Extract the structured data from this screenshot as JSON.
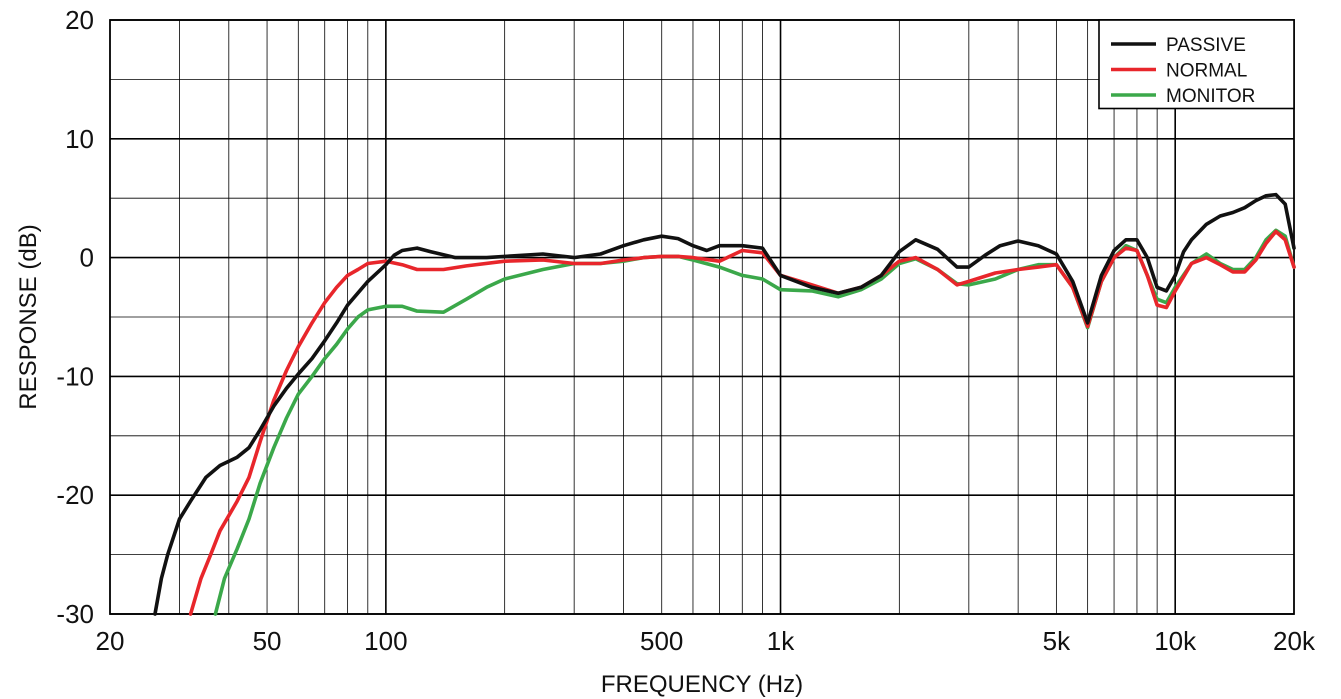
{
  "chart_data": {
    "type": "line",
    "xlabel": "FREQUENCY (Hz)",
    "ylabel": "RESPONSE (dB)",
    "x_scale": "log",
    "xlim": [
      20,
      20000
    ],
    "ylim": [
      -30,
      20
    ],
    "grid": true,
    "legend_position": "top-right",
    "x_ticks": [
      {
        "value": 20,
        "label": "20"
      },
      {
        "value": 50,
        "label": "50"
      },
      {
        "value": 100,
        "label": "100"
      },
      {
        "value": 500,
        "label": "500"
      },
      {
        "value": 1000,
        "label": "1k"
      },
      {
        "value": 5000,
        "label": "5k"
      },
      {
        "value": 10000,
        "label": "10k"
      },
      {
        "value": 20000,
        "label": "20k"
      }
    ],
    "y_ticks": [
      {
        "value": 20,
        "label": "20"
      },
      {
        "value": 10,
        "label": "10"
      },
      {
        "value": 0,
        "label": "0"
      },
      {
        "value": -10,
        "label": "-10"
      },
      {
        "value": -20,
        "label": "-20"
      },
      {
        "value": -30,
        "label": "-30"
      }
    ],
    "series": [
      {
        "name": "PASSIVE",
        "color": "#111111",
        "points": [
          [
            26,
            -30
          ],
          [
            27,
            -27
          ],
          [
            28,
            -25
          ],
          [
            30,
            -22
          ],
          [
            32,
            -20.5
          ],
          [
            35,
            -18.5
          ],
          [
            38,
            -17.5
          ],
          [
            42,
            -16.8
          ],
          [
            45,
            -16
          ],
          [
            48,
            -14.5
          ],
          [
            52,
            -12.5
          ],
          [
            56,
            -11
          ],
          [
            60,
            -9.8
          ],
          [
            65,
            -8.5
          ],
          [
            70,
            -7
          ],
          [
            75,
            -5.5
          ],
          [
            80,
            -4
          ],
          [
            90,
            -2
          ],
          [
            100,
            -0.6
          ],
          [
            105,
            0.2
          ],
          [
            110,
            0.6
          ],
          [
            120,
            0.8
          ],
          [
            130,
            0.5
          ],
          [
            150,
            0
          ],
          [
            180,
            0
          ],
          [
            200,
            0.1
          ],
          [
            250,
            0.3
          ],
          [
            300,
            0
          ],
          [
            350,
            0.3
          ],
          [
            400,
            1
          ],
          [
            450,
            1.5
          ],
          [
            500,
            1.8
          ],
          [
            550,
            1.6
          ],
          [
            600,
            1
          ],
          [
            650,
            0.6
          ],
          [
            700,
            1
          ],
          [
            800,
            1
          ],
          [
            900,
            0.8
          ],
          [
            1000,
            -1.5
          ],
          [
            1200,
            -2.5
          ],
          [
            1400,
            -3
          ],
          [
            1600,
            -2.5
          ],
          [
            1800,
            -1.5
          ],
          [
            2000,
            0.5
          ],
          [
            2200,
            1.5
          ],
          [
            2500,
            0.7
          ],
          [
            2800,
            -0.8
          ],
          [
            3000,
            -0.8
          ],
          [
            3300,
            0.2
          ],
          [
            3600,
            1
          ],
          [
            4000,
            1.4
          ],
          [
            4500,
            1
          ],
          [
            5000,
            0.3
          ],
          [
            5500,
            -2
          ],
          [
            6000,
            -5.5
          ],
          [
            6500,
            -1.5
          ],
          [
            7000,
            0.6
          ],
          [
            7500,
            1.5
          ],
          [
            8000,
            1.5
          ],
          [
            8500,
            0
          ],
          [
            9000,
            -2.5
          ],
          [
            9500,
            -2.8
          ],
          [
            10000,
            -1.5
          ],
          [
            10500,
            0.5
          ],
          [
            11000,
            1.5
          ],
          [
            12000,
            2.8
          ],
          [
            13000,
            3.5
          ],
          [
            14000,
            3.8
          ],
          [
            15000,
            4.2
          ],
          [
            16000,
            4.8
          ],
          [
            17000,
            5.2
          ],
          [
            18000,
            5.3
          ],
          [
            19000,
            4.5
          ],
          [
            20000,
            0.8
          ]
        ]
      },
      {
        "name": "NORMAL",
        "color": "#e8262b",
        "points": [
          [
            32,
            -30
          ],
          [
            34,
            -27
          ],
          [
            36,
            -25
          ],
          [
            38,
            -23
          ],
          [
            42,
            -20.5
          ],
          [
            45,
            -18.5
          ],
          [
            48,
            -15.5
          ],
          [
            52,
            -12
          ],
          [
            56,
            -9.5
          ],
          [
            60,
            -7.5
          ],
          [
            65,
            -5.5
          ],
          [
            70,
            -3.8
          ],
          [
            75,
            -2.5
          ],
          [
            80,
            -1.5
          ],
          [
            85,
            -1
          ],
          [
            90,
            -0.5
          ],
          [
            100,
            -0.3
          ],
          [
            110,
            -0.6
          ],
          [
            120,
            -1
          ],
          [
            140,
            -1
          ],
          [
            160,
            -0.7
          ],
          [
            200,
            -0.3
          ],
          [
            250,
            -0.2
          ],
          [
            300,
            -0.5
          ],
          [
            350,
            -0.5
          ],
          [
            400,
            -0.2
          ],
          [
            450,
            0
          ],
          [
            500,
            0.1
          ],
          [
            550,
            0.1
          ],
          [
            600,
            0
          ],
          [
            700,
            -0.3
          ],
          [
            800,
            0.6
          ],
          [
            900,
            0.4
          ],
          [
            1000,
            -1.5
          ],
          [
            1200,
            -2.3
          ],
          [
            1400,
            -3
          ],
          [
            1600,
            -2.5
          ],
          [
            1800,
            -1.5
          ],
          [
            2000,
            -0.3
          ],
          [
            2200,
            0
          ],
          [
            2500,
            -1
          ],
          [
            2800,
            -2.3
          ],
          [
            3000,
            -2
          ],
          [
            3500,
            -1.3
          ],
          [
            4000,
            -1
          ],
          [
            4500,
            -0.8
          ],
          [
            5000,
            -0.6
          ],
          [
            5500,
            -2.5
          ],
          [
            6000,
            -5.8
          ],
          [
            6500,
            -2
          ],
          [
            7000,
            0
          ],
          [
            7500,
            0.8
          ],
          [
            8000,
            0.6
          ],
          [
            8500,
            -1.5
          ],
          [
            9000,
            -4
          ],
          [
            9500,
            -4.2
          ],
          [
            10000,
            -2.8
          ],
          [
            11000,
            -0.5
          ],
          [
            12000,
            0
          ],
          [
            13000,
            -0.6
          ],
          [
            14000,
            -1.2
          ],
          [
            15000,
            -1.2
          ],
          [
            16000,
            -0.2
          ],
          [
            17000,
            1.2
          ],
          [
            18000,
            2.2
          ],
          [
            19000,
            1.5
          ],
          [
            20000,
            -0.8
          ]
        ]
      },
      {
        "name": "MONITOR",
        "color": "#3ba84a",
        "points": [
          [
            37,
            -30
          ],
          [
            39,
            -27
          ],
          [
            42,
            -24.5
          ],
          [
            45,
            -22
          ],
          [
            48,
            -19
          ],
          [
            52,
            -16
          ],
          [
            56,
            -13.5
          ],
          [
            60,
            -11.5
          ],
          [
            65,
            -10
          ],
          [
            70,
            -8.5
          ],
          [
            75,
            -7.3
          ],
          [
            80,
            -6
          ],
          [
            85,
            -5
          ],
          [
            90,
            -4.4
          ],
          [
            100,
            -4.1
          ],
          [
            110,
            -4.1
          ],
          [
            120,
            -4.5
          ],
          [
            140,
            -4.6
          ],
          [
            160,
            -3.5
          ],
          [
            180,
            -2.5
          ],
          [
            200,
            -1.8
          ],
          [
            250,
            -1
          ],
          [
            300,
            -0.5
          ],
          [
            350,
            -0.5
          ],
          [
            400,
            -0.3
          ],
          [
            450,
            0
          ],
          [
            500,
            0.1
          ],
          [
            550,
            0.1
          ],
          [
            600,
            -0.2
          ],
          [
            700,
            -0.8
          ],
          [
            800,
            -1.5
          ],
          [
            900,
            -1.8
          ],
          [
            1000,
            -2.7
          ],
          [
            1200,
            -2.8
          ],
          [
            1400,
            -3.3
          ],
          [
            1600,
            -2.7
          ],
          [
            1800,
            -1.8
          ],
          [
            2000,
            -0.5
          ],
          [
            2200,
            -0.1
          ],
          [
            2500,
            -1
          ],
          [
            2800,
            -2.2
          ],
          [
            3000,
            -2.3
          ],
          [
            3500,
            -1.8
          ],
          [
            4000,
            -1
          ],
          [
            4500,
            -0.6
          ],
          [
            5000,
            -0.6
          ],
          [
            5500,
            -2.5
          ],
          [
            6000,
            -5.9
          ],
          [
            6500,
            -2
          ],
          [
            7000,
            0
          ],
          [
            7500,
            1
          ],
          [
            8000,
            0.6
          ],
          [
            8500,
            -1.5
          ],
          [
            9000,
            -3.5
          ],
          [
            9500,
            -3.8
          ],
          [
            10000,
            -2.5
          ],
          [
            11000,
            -0.5
          ],
          [
            12000,
            0.3
          ],
          [
            13000,
            -0.5
          ],
          [
            14000,
            -1
          ],
          [
            15000,
            -1
          ],
          [
            16000,
            0
          ],
          [
            17000,
            1.5
          ],
          [
            18000,
            2.3
          ],
          [
            19000,
            1.8
          ],
          [
            20000,
            -0.8
          ]
        ]
      }
    ]
  }
}
